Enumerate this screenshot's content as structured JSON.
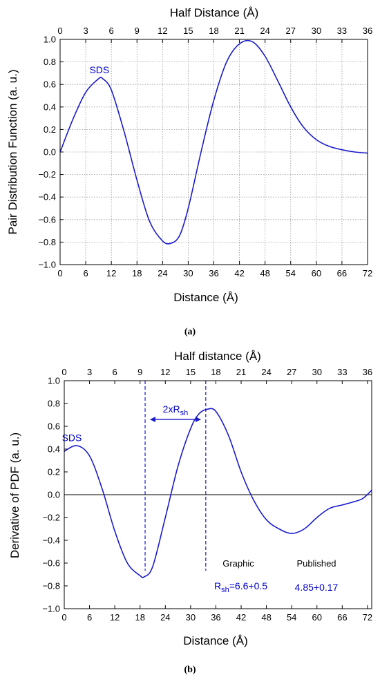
{
  "colors": {
    "curve": "#1a1acc",
    "grid": "#9a9a9a",
    "axis": "#000000"
  },
  "chart_data": [
    {
      "type": "line",
      "panel_label": "(a)",
      "xlabel": "Distance (Å)",
      "ylabel": "Pair Distribution Function (a. u.)",
      "top_axis_label": "Half Distance (Å)",
      "xlim": [
        0,
        72
      ],
      "ylim": [
        -1.0,
        1.0
      ],
      "x_ticks": [
        0,
        6,
        12,
        18,
        24,
        30,
        36,
        42,
        48,
        54,
        60,
        66,
        72
      ],
      "top_ticks": [
        0,
        3,
        6,
        9,
        12,
        15,
        18,
        21,
        24,
        27,
        30,
        33,
        36
      ],
      "y_ticks": [
        "−1.0",
        "−0.8",
        "−0.6",
        "−0.4",
        "−0.2",
        "0.0",
        "0.2",
        "0.4",
        "0.6",
        "0.8",
        "1.0"
      ],
      "grid": true,
      "annotations": [
        {
          "text": "SDS",
          "x": 9.2,
          "y": 0.7
        }
      ],
      "series": [
        {
          "x": [
            0,
            3,
            6,
            9,
            10,
            12,
            15,
            18,
            21,
            24,
            26,
            28,
            30,
            33,
            36,
            39,
            42,
            45,
            48,
            51,
            54,
            57,
            60,
            63,
            66,
            69,
            72
          ],
          "y": [
            0.0,
            0.29,
            0.53,
            0.65,
            0.65,
            0.55,
            0.18,
            -0.25,
            -0.62,
            -0.79,
            -0.81,
            -0.74,
            -0.5,
            0.0,
            0.46,
            0.8,
            0.96,
            0.98,
            0.85,
            0.63,
            0.4,
            0.22,
            0.11,
            0.05,
            0.02,
            0.0,
            -0.01
          ]
        }
      ]
    },
    {
      "type": "line",
      "panel_label": "(b)",
      "xlabel": "Distance (Å)",
      "ylabel": "Derivative of  PDF (a. u.)",
      "top_axis_label": "Half distance (Å)",
      "xlim": [
        0,
        73
      ],
      "ylim": [
        -1.0,
        1.0
      ],
      "x_ticks": [
        0,
        6,
        12,
        18,
        24,
        30,
        36,
        42,
        48,
        54,
        60,
        66,
        72
      ],
      "top_ticks": [
        0,
        3,
        6,
        9,
        12,
        15,
        18,
        21,
        24,
        27,
        30,
        33,
        36
      ],
      "y_ticks": [
        "−1.0",
        "−0.8",
        "−0.6",
        "−0.4",
        "−0.2",
        "0.0",
        "0.2",
        "0.4",
        "0.6",
        "0.8",
        "1.0"
      ],
      "grid": false,
      "zero_line": true,
      "vlines": [
        19.2,
        33.6
      ],
      "arrow": {
        "x1": 20.5,
        "x2": 32.3,
        "y": 0.66,
        "label_main": "2xR",
        "label_sub": "sh"
      },
      "annotations": [
        {
          "text": "SDS",
          "x": 1.8,
          "y": 0.47
        }
      ],
      "table": {
        "graphic_header": "Graphic",
        "published_header": "Published",
        "r_main": "R",
        "r_sub": "sh",
        "graphic_value": "=6.6+0.5",
        "published_value": "4.85+0.17"
      },
      "series": [
        {
          "x": [
            0,
            3,
            6,
            9,
            12,
            15,
            18,
            19,
            21,
            24,
            27,
            30,
            32,
            34,
            36,
            39,
            42,
            45,
            48,
            51,
            54,
            57,
            60,
            63,
            66,
            69,
            71,
            73
          ],
          "y": [
            0.38,
            0.43,
            0.34,
            0.05,
            -0.32,
            -0.6,
            -0.71,
            -0.72,
            -0.63,
            -0.2,
            0.25,
            0.58,
            0.71,
            0.75,
            0.73,
            0.52,
            0.2,
            -0.05,
            -0.22,
            -0.3,
            -0.34,
            -0.3,
            -0.2,
            -0.12,
            -0.09,
            -0.06,
            -0.03,
            0.04
          ]
        }
      ]
    }
  ]
}
